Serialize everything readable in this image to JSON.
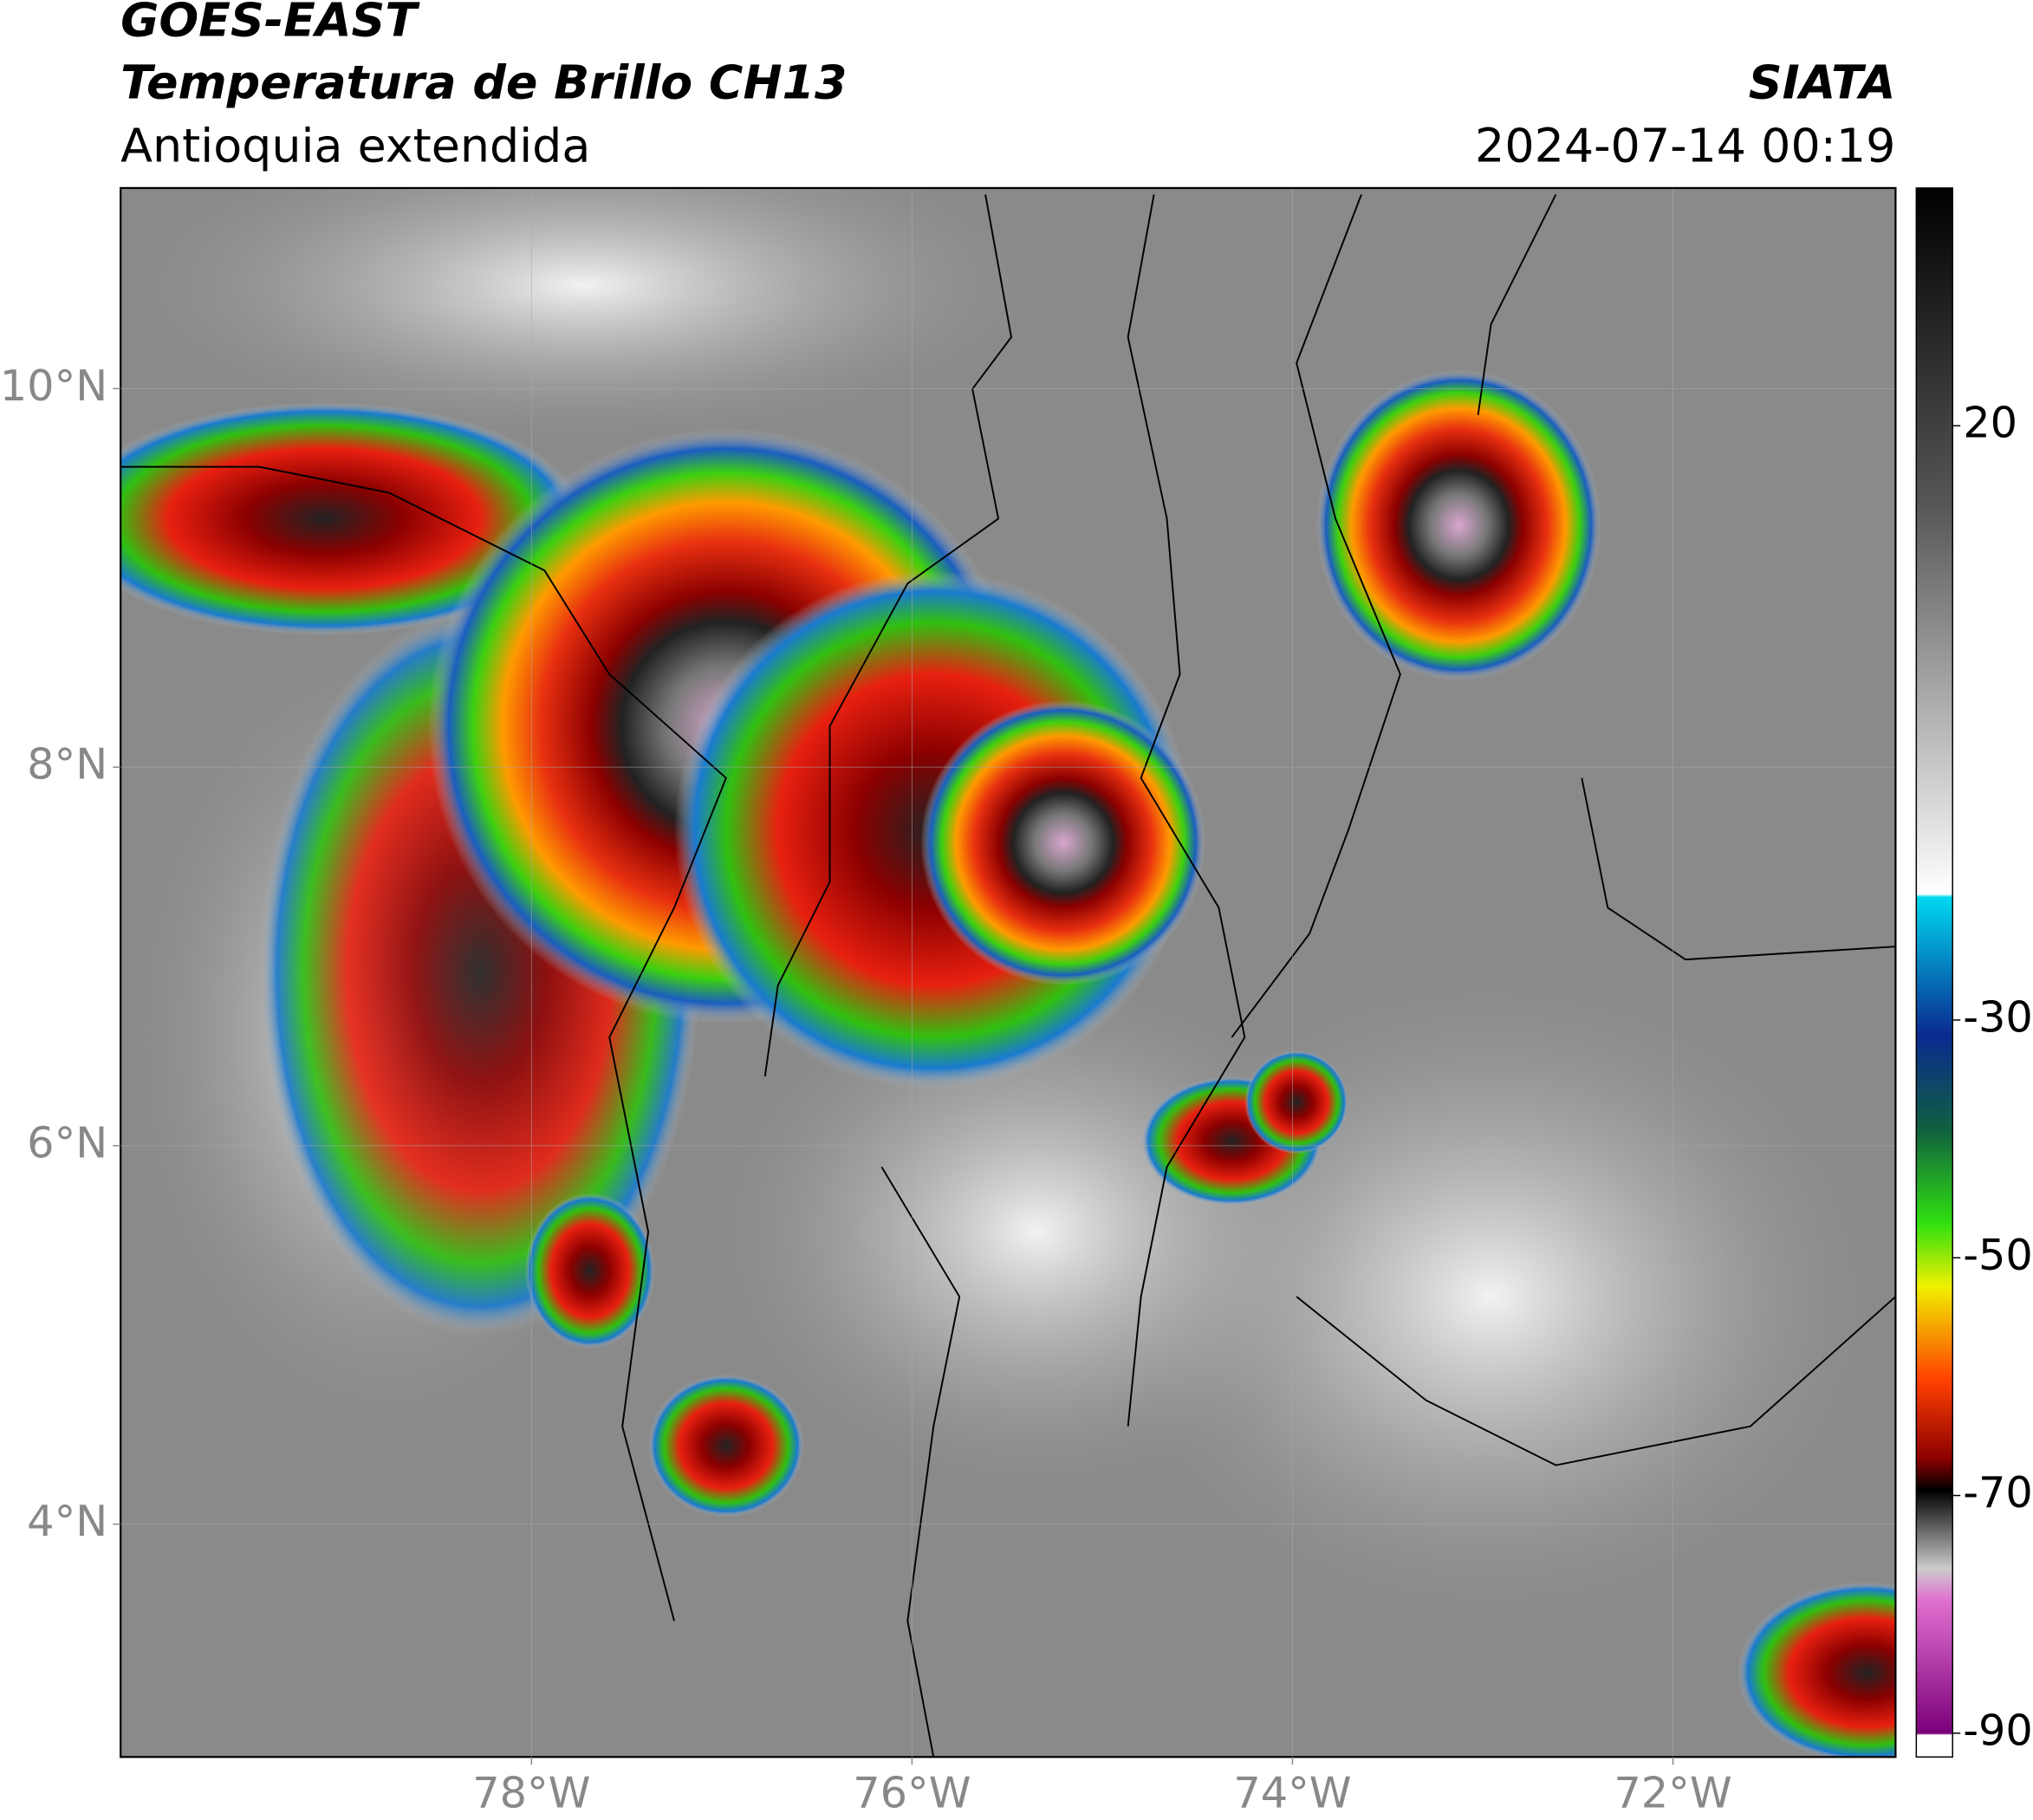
{
  "header": {
    "title": "GOES-EAST",
    "subtitle": "Temperatura de Brillo CH13",
    "region": "Antioquia extendida",
    "source": "SIATA",
    "datetime": "2024-07-14 00:19"
  },
  "map": {
    "xlim": [
      -80.16,
      -70.83
    ],
    "ylim": [
      2.77,
      11.06
    ],
    "grid": true,
    "yticks": [
      {
        "value": 4,
        "label": "4°N"
      },
      {
        "value": 6,
        "label": "6°N"
      },
      {
        "value": 8,
        "label": "8°N"
      },
      {
        "value": 10,
        "label": "10°N"
      }
    ],
    "xticks": [
      {
        "value": -78,
        "label": "78°W"
      },
      {
        "value": -76,
        "label": "76°W"
      },
      {
        "value": -74,
        "label": "74°W"
      },
      {
        "value": -72,
        "label": "72°W"
      }
    ]
  },
  "colorbar": {
    "lim": [
      -92,
      40
    ],
    "ticks": [
      20,
      -30,
      -50,
      -70,
      -90
    ]
  }
}
